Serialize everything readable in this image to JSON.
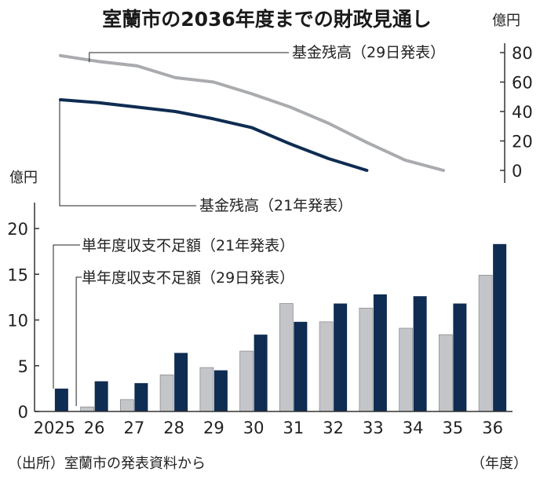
{
  "title": "室蘭市の2036年度までの財政見通し",
  "source": "（出所）室蘭市の発表資料から",
  "colors": {
    "navy": "#0f2c52",
    "gray": "#a9abae",
    "gray_bar": "#c3c5c8",
    "axis": "#333333"
  },
  "chart_data": [
    {
      "type": "line",
      "unit": "億円",
      "ylim": [
        0,
        80
      ],
      "yticks": [
        "80",
        "60",
        "40",
        "20",
        "0"
      ],
      "x": [
        2025,
        2026,
        2027,
        2028,
        2029,
        2030,
        2031,
        2032,
        2033,
        2034,
        2035
      ],
      "series": [
        {
          "name": "基金残高（29日発表）",
          "color": "gray",
          "values": [
            78,
            74,
            71,
            63,
            60,
            52,
            43,
            32,
            19,
            7,
            0
          ]
        },
        {
          "name": "基金残高（21年発表）",
          "color": "navy",
          "values": [
            48,
            46,
            43,
            40,
            35,
            29,
            18,
            8,
            0,
            null,
            null
          ]
        }
      ]
    },
    {
      "type": "bar",
      "unit": "億円",
      "ylim": [
        0,
        20
      ],
      "yticks": [
        "20",
        "15",
        "10",
        "5",
        "0"
      ],
      "categories": [
        "2025",
        "26",
        "27",
        "28",
        "29",
        "30",
        "31",
        "32",
        "33",
        "34",
        "35",
        "36"
      ],
      "xlabel": "（年度）",
      "series": [
        {
          "name": "単年度収支不足額（29日発表）",
          "color": "gray_bar",
          "values": [
            null,
            0.5,
            1.3,
            4.0,
            4.8,
            6.6,
            11.8,
            9.8,
            11.3,
            9.1,
            8.4,
            14.9
          ]
        },
        {
          "name": "単年度収支不足額（21年発表）",
          "color": "navy",
          "values": [
            2.5,
            3.3,
            3.1,
            6.4,
            4.5,
            8.4,
            9.8,
            11.8,
            12.8,
            12.6,
            11.8,
            18.3
          ]
        }
      ]
    }
  ]
}
